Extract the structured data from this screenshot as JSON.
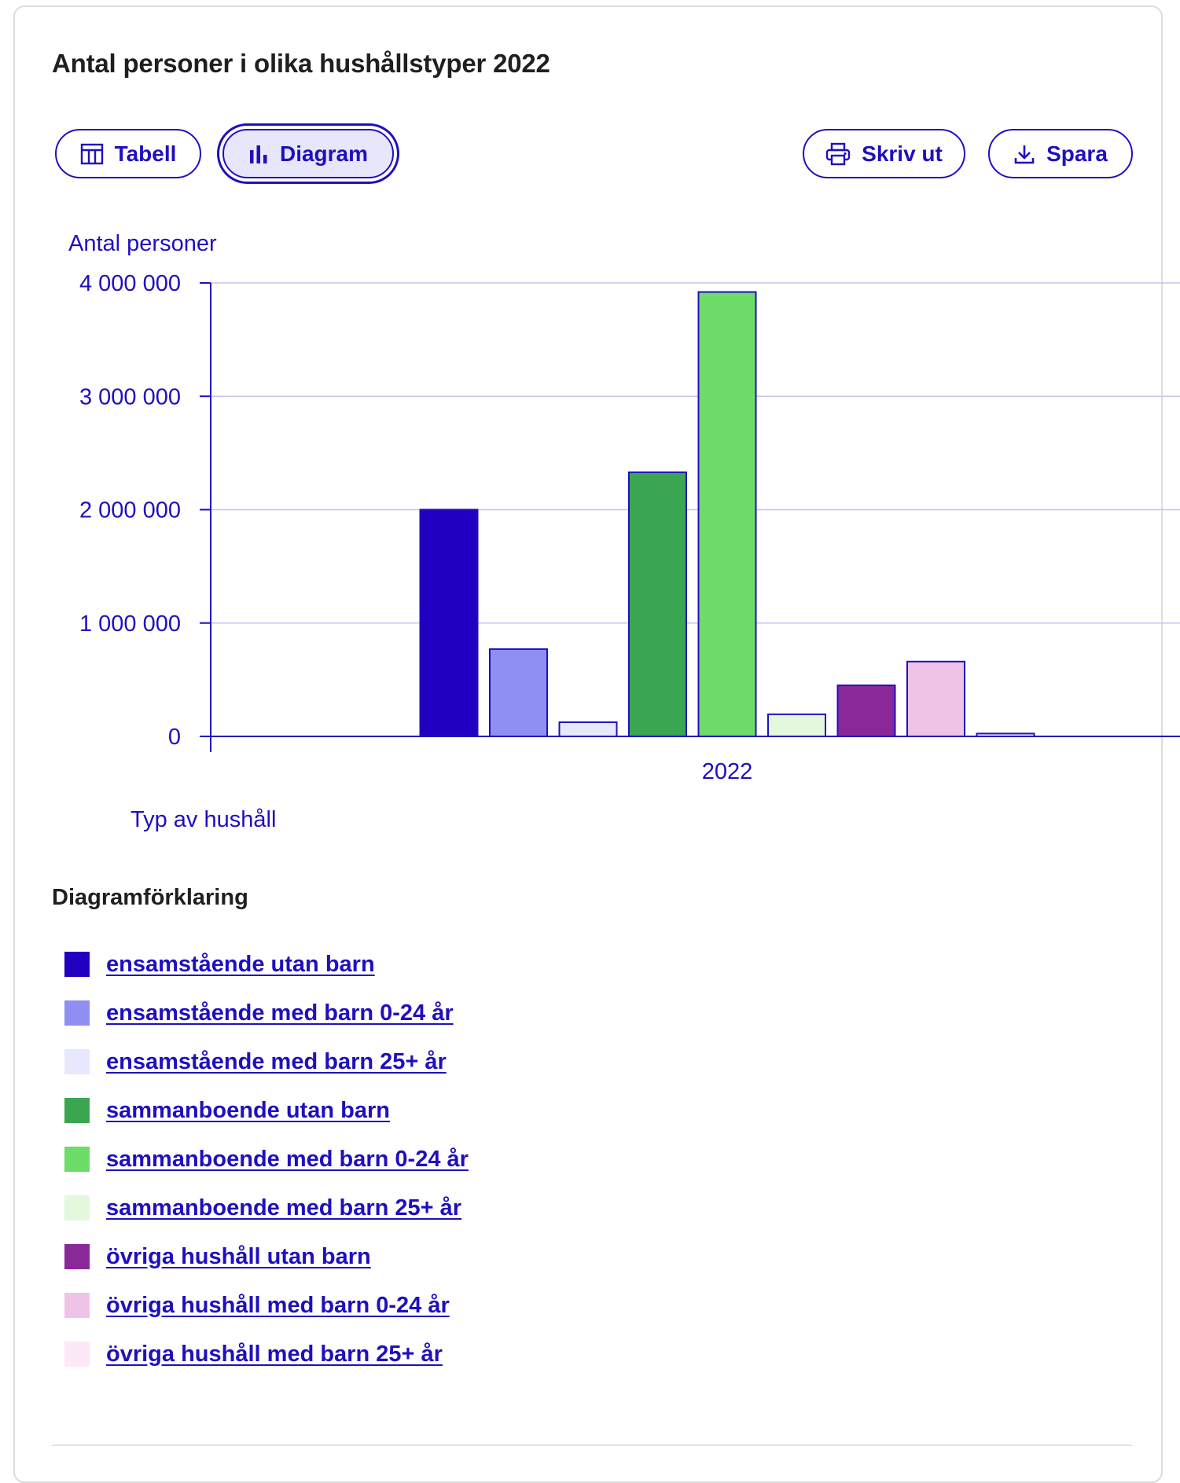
{
  "title": "Antal personer i olika hushållstyper 2022",
  "toolbar": {
    "table_label": "Tabell",
    "chart_label": "Diagram",
    "print_label": "Skriv ut",
    "save_label": "Spara",
    "active": "Diagram"
  },
  "colors": {
    "accent": "#1f0fbf",
    "grid": "#c7c3f0"
  },
  "chart_data": {
    "type": "bar",
    "ylabel": "Antal personer",
    "xlabel": "Typ av hushåll",
    "categories": [
      "2022"
    ],
    "ylim": [
      0,
      4000000
    ],
    "yticks": [
      0,
      1000000,
      2000000,
      3000000,
      4000000
    ],
    "ytick_labels": [
      "0",
      "1 000 000",
      "2 000 000",
      "3 000 000",
      "4 000 000"
    ],
    "grid": true,
    "series": [
      {
        "name": "ensamstående utan barn",
        "color": "#2200c2",
        "values": [
          2000000
        ]
      },
      {
        "name": "ensamstående med barn 0-24 år",
        "color": "#8f8ff2",
        "values": [
          770000
        ]
      },
      {
        "name": "ensamstående med barn 25+ år",
        "color": "#e8e8fc",
        "values": [
          125000
        ]
      },
      {
        "name": "sammanboende utan barn",
        "color": "#3ba651",
        "values": [
          2330000
        ]
      },
      {
        "name": "sammanboende med barn 0-24 år",
        "color": "#6ddc68",
        "values": [
          3920000
        ]
      },
      {
        "name": "sammanboende med barn 25+ år",
        "color": "#e3f8dd",
        "values": [
          195000
        ]
      },
      {
        "name": "övriga hushåll utan barn",
        "color": "#8b2899",
        "values": [
          450000
        ]
      },
      {
        "name": "övriga hushåll med barn 0-24 år",
        "color": "#efc3e6",
        "values": [
          660000
        ]
      },
      {
        "name": "övriga hushåll med barn 25+ år",
        "color": "#fde8f8",
        "values": [
          25000
        ]
      }
    ]
  },
  "legend": {
    "title": "Diagramförklaring"
  }
}
